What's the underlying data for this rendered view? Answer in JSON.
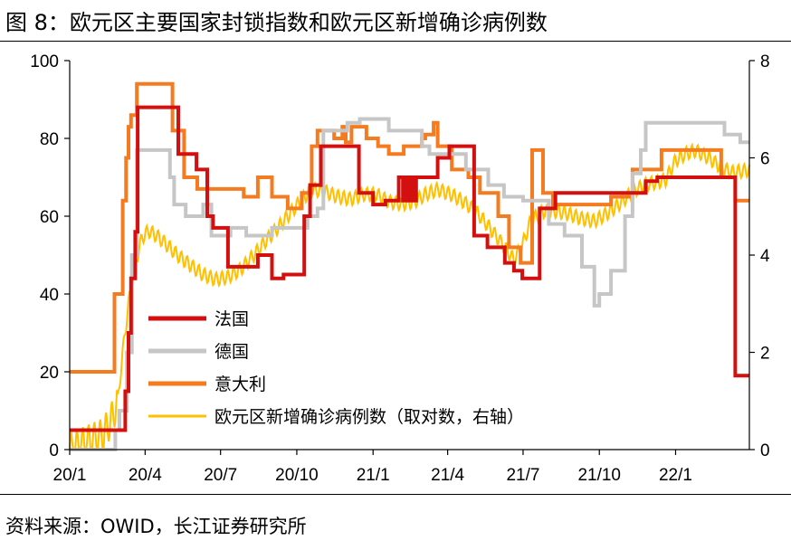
{
  "figure": {
    "title": "图 8：欧元区主要国家封锁指数和欧元区新增确诊病例数",
    "source": "资料来源：OWID，长江证券研究所"
  },
  "chart_data": {
    "type": "line",
    "left_axis": {
      "ylim": [
        0,
        100
      ],
      "ticks": [
        0,
        20,
        40,
        60,
        80,
        100
      ]
    },
    "right_axis": {
      "ylim": [
        0,
        8
      ],
      "ticks": [
        0,
        2,
        4,
        6,
        8
      ]
    },
    "x_axis": {
      "start": "2020-01-01",
      "end": "2022-03-31",
      "ticks": [
        {
          "date": "2020-01-01",
          "label": "20/1"
        },
        {
          "date": "2020-04-01",
          "label": "20/4"
        },
        {
          "date": "2020-07-01",
          "label": "20/7"
        },
        {
          "date": "2020-10-01",
          "label": "20/10"
        },
        {
          "date": "2021-01-01",
          "label": "21/1"
        },
        {
          "date": "2021-04-01",
          "label": "21/4"
        },
        {
          "date": "2021-07-01",
          "label": "21/7"
        },
        {
          "date": "2021-10-01",
          "label": "21/10"
        },
        {
          "date": "2022-01-01",
          "label": "22/1"
        }
      ]
    },
    "grid": false,
    "legend": "center-left",
    "series": [
      {
        "name": "法国",
        "axis": "left",
        "color": "#d40f0f",
        "step": true,
        "points": [
          [
            "2020-01-01",
            5
          ],
          [
            "2020-03-01",
            5
          ],
          [
            "2020-03-08",
            15
          ],
          [
            "2020-03-12",
            30
          ],
          [
            "2020-03-15",
            44
          ],
          [
            "2020-03-20",
            56
          ],
          [
            "2020-03-23",
            88
          ],
          [
            "2020-05-11",
            76
          ],
          [
            "2020-06-02",
            72
          ],
          [
            "2020-06-15",
            60
          ],
          [
            "2020-06-22",
            57
          ],
          [
            "2020-07-10",
            47
          ],
          [
            "2020-08-01",
            47
          ],
          [
            "2020-08-15",
            50
          ],
          [
            "2020-09-01",
            44
          ],
          [
            "2020-09-15",
            45
          ],
          [
            "2020-10-10",
            60
          ],
          [
            "2020-10-17",
            68
          ],
          [
            "2020-10-30",
            78
          ],
          [
            "2020-12-15",
            66
          ],
          [
            "2021-01-01",
            63
          ],
          [
            "2021-01-16",
            64
          ],
          [
            "2021-01-23",
            64
          ],
          [
            "2021-02-01",
            70
          ],
          [
            "2021-02-06",
            64
          ],
          [
            "2021-02-09",
            70
          ],
          [
            "2021-02-12",
            64
          ],
          [
            "2021-02-15",
            70
          ],
          [
            "2021-02-18",
            64
          ],
          [
            "2021-02-22",
            70
          ],
          [
            "2021-03-05",
            70
          ],
          [
            "2021-03-20",
            75
          ],
          [
            "2021-04-03",
            78
          ],
          [
            "2021-05-03",
            55
          ],
          [
            "2021-05-19",
            52
          ],
          [
            "2021-06-09",
            48
          ],
          [
            "2021-06-20",
            46
          ],
          [
            "2021-06-30",
            44
          ],
          [
            "2021-07-21",
            62
          ],
          [
            "2021-08-09",
            66
          ],
          [
            "2021-09-15",
            66
          ],
          [
            "2021-11-10",
            66
          ],
          [
            "2021-11-26",
            69
          ],
          [
            "2021-12-10",
            70
          ],
          [
            "2022-02-02",
            70
          ],
          [
            "2022-02-16",
            70
          ],
          [
            "2022-03-14",
            19
          ],
          [
            "2022-03-31",
            19
          ]
        ]
      },
      {
        "name": "德国",
        "axis": "left",
        "color": "#c6c6c6",
        "step": true,
        "points": [
          [
            "2020-01-01",
            0
          ],
          [
            "2020-02-25",
            5
          ],
          [
            "2020-03-01",
            10
          ],
          [
            "2020-03-10",
            25
          ],
          [
            "2020-03-16",
            50
          ],
          [
            "2020-03-22",
            77
          ],
          [
            "2020-05-01",
            70
          ],
          [
            "2020-05-06",
            63
          ],
          [
            "2020-05-20",
            60
          ],
          [
            "2020-06-10",
            63
          ],
          [
            "2020-06-20",
            55
          ],
          [
            "2020-07-13",
            57
          ],
          [
            "2020-08-01",
            55
          ],
          [
            "2020-09-01",
            57
          ],
          [
            "2020-10-14",
            60
          ],
          [
            "2020-10-26",
            62
          ],
          [
            "2020-11-02",
            82
          ],
          [
            "2020-12-01",
            84
          ],
          [
            "2020-12-16",
            85
          ],
          [
            "2021-01-20",
            82
          ],
          [
            "2021-03-01",
            78
          ],
          [
            "2021-03-10",
            76
          ],
          [
            "2021-04-23",
            72
          ],
          [
            "2021-05-20",
            68
          ],
          [
            "2021-06-08",
            65
          ],
          [
            "2021-07-01",
            64
          ],
          [
            "2021-08-01",
            58
          ],
          [
            "2021-08-20",
            55
          ],
          [
            "2021-09-10",
            47
          ],
          [
            "2021-09-25",
            37
          ],
          [
            "2021-10-01",
            40
          ],
          [
            "2021-10-15",
            46
          ],
          [
            "2021-11-01",
            60
          ],
          [
            "2021-11-10",
            71
          ],
          [
            "2021-11-20",
            77
          ],
          [
            "2021-11-26",
            84
          ],
          [
            "2022-02-20",
            84
          ],
          [
            "2022-03-01",
            81
          ],
          [
            "2022-03-20",
            79
          ],
          [
            "2022-03-31",
            79
          ]
        ]
      },
      {
        "name": "意大利",
        "axis": "left",
        "color": "#f47b1f",
        "step": true,
        "points": [
          [
            "2020-01-01",
            20
          ],
          [
            "2020-02-21",
            20
          ],
          [
            "2020-02-24",
            40
          ],
          [
            "2020-03-05",
            64
          ],
          [
            "2020-03-09",
            75
          ],
          [
            "2020-03-12",
            83
          ],
          [
            "2020-03-15",
            86
          ],
          [
            "2020-03-22",
            94
          ],
          [
            "2020-05-04",
            82
          ],
          [
            "2020-05-18",
            70
          ],
          [
            "2020-06-03",
            67
          ],
          [
            "2020-07-15",
            67
          ],
          [
            "2020-07-29",
            65
          ],
          [
            "2020-08-15",
            70
          ],
          [
            "2020-09-01",
            65
          ],
          [
            "2020-09-20",
            62
          ],
          [
            "2020-10-07",
            66
          ],
          [
            "2020-10-19",
            78
          ],
          [
            "2020-10-26",
            82
          ],
          [
            "2020-11-15",
            80
          ],
          [
            "2020-11-25",
            83
          ],
          [
            "2020-11-29",
            79
          ],
          [
            "2020-12-06",
            83
          ],
          [
            "2020-12-24",
            80
          ],
          [
            "2021-01-07",
            78
          ],
          [
            "2021-01-20",
            76
          ],
          [
            "2021-02-07",
            78
          ],
          [
            "2021-03-01",
            80
          ],
          [
            "2021-03-05",
            81
          ],
          [
            "2021-03-15",
            84
          ],
          [
            "2021-03-20",
            78
          ],
          [
            "2021-04-06",
            72
          ],
          [
            "2021-04-26",
            70
          ],
          [
            "2021-05-10",
            66
          ],
          [
            "2021-06-01",
            60
          ],
          [
            "2021-06-14",
            52
          ],
          [
            "2021-06-28",
            48
          ],
          [
            "2021-07-12",
            77
          ],
          [
            "2021-07-25",
            66
          ],
          [
            "2021-08-06",
            63
          ],
          [
            "2021-09-01",
            63
          ],
          [
            "2021-10-15",
            65
          ],
          [
            "2021-11-10",
            72
          ],
          [
            "2021-12-15",
            77
          ],
          [
            "2022-02-10",
            77
          ],
          [
            "2022-02-25",
            70
          ],
          [
            "2022-03-14",
            64
          ],
          [
            "2022-03-31",
            64
          ]
        ]
      },
      {
        "name": "欧元区新增确诊病例数（取对数，右轴）",
        "axis": "right",
        "color": "#ffc000",
        "step": false,
        "oscillating": true,
        "points": [
          [
            "2020-01-01",
            0.0
          ],
          [
            "2020-02-10",
            0.3
          ],
          [
            "2020-02-20",
            0.6
          ],
          [
            "2020-02-28",
            1.0
          ],
          [
            "2020-03-05",
            2.0
          ],
          [
            "2020-03-12",
            3.0
          ],
          [
            "2020-03-20",
            3.8
          ],
          [
            "2020-03-28",
            4.35
          ],
          [
            "2020-04-05",
            4.5
          ],
          [
            "2020-04-15",
            4.4
          ],
          [
            "2020-04-28",
            4.2
          ],
          [
            "2020-05-10",
            4.0
          ],
          [
            "2020-05-25",
            3.8
          ],
          [
            "2020-06-10",
            3.6
          ],
          [
            "2020-06-25",
            3.5
          ],
          [
            "2020-07-10",
            3.55
          ],
          [
            "2020-07-25",
            3.7
          ],
          [
            "2020-08-10",
            4.0
          ],
          [
            "2020-08-25",
            4.3
          ],
          [
            "2020-09-10",
            4.6
          ],
          [
            "2020-09-25",
            4.9
          ],
          [
            "2020-10-10",
            5.2
          ],
          [
            "2020-10-20",
            5.35
          ],
          [
            "2020-11-05",
            5.3
          ],
          [
            "2020-11-20",
            5.2
          ],
          [
            "2020-12-05",
            5.15
          ],
          [
            "2020-12-20",
            5.25
          ],
          [
            "2021-01-05",
            5.25
          ],
          [
            "2021-01-20",
            5.1
          ],
          [
            "2021-02-05",
            5.05
          ],
          [
            "2021-02-20",
            5.1
          ],
          [
            "2021-03-05",
            5.25
          ],
          [
            "2021-03-20",
            5.35
          ],
          [
            "2021-04-05",
            5.25
          ],
          [
            "2021-04-20",
            5.1
          ],
          [
            "2021-05-05",
            4.9
          ],
          [
            "2021-05-20",
            4.6
          ],
          [
            "2021-06-05",
            4.25
          ],
          [
            "2021-06-20",
            3.9
          ],
          [
            "2021-06-30",
            4.2
          ],
          [
            "2021-07-10",
            4.7
          ],
          [
            "2021-07-25",
            4.9
          ],
          [
            "2021-08-10",
            4.9
          ],
          [
            "2021-08-25",
            4.85
          ],
          [
            "2021-09-10",
            4.75
          ],
          [
            "2021-09-25",
            4.7
          ],
          [
            "2021-10-10",
            4.85
          ],
          [
            "2021-10-25",
            5.05
          ],
          [
            "2021-11-10",
            5.3
          ],
          [
            "2021-11-25",
            5.45
          ],
          [
            "2021-12-10",
            5.5
          ],
          [
            "2021-12-20",
            5.55
          ],
          [
            "2022-01-01",
            5.95
          ],
          [
            "2022-01-15",
            6.1
          ],
          [
            "2022-01-25",
            6.15
          ],
          [
            "2022-02-10",
            6.0
          ],
          [
            "2022-02-25",
            5.8
          ],
          [
            "2022-03-10",
            5.7
          ],
          [
            "2022-03-31",
            5.75
          ]
        ]
      }
    ]
  }
}
